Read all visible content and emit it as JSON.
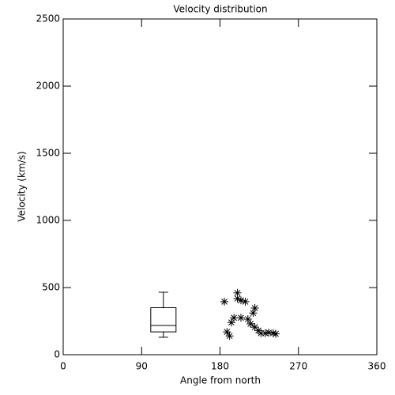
{
  "chart_data": {
    "type": "scatter",
    "title": "Velocity distribution",
    "xlabel": "Angle from north",
    "ylabel": "Velocity (km/s)",
    "xlim": [
      0,
      360
    ],
    "ylim": [
      0,
      2500
    ],
    "xticks": [
      0,
      90,
      180,
      270,
      360
    ],
    "yticks": [
      0,
      500,
      1000,
      1500,
      2000,
      2500
    ],
    "color": "#000000",
    "x": [
      185,
      188,
      191,
      193,
      196,
      200,
      200,
      204,
      204,
      209,
      212,
      215,
      218,
      220,
      220,
      224,
      227,
      232,
      236,
      241,
      244
    ],
    "values": [
      395,
      170,
      140,
      240,
      275,
      460,
      418,
      405,
      275,
      395,
      265,
      230,
      310,
      347,
      205,
      180,
      160,
      160,
      165,
      160,
      155
    ],
    "boxes": [
      {
        "x": 115,
        "min": 130,
        "q1": 170,
        "median": 218,
        "q3": 350,
        "max": 465
      }
    ]
  }
}
